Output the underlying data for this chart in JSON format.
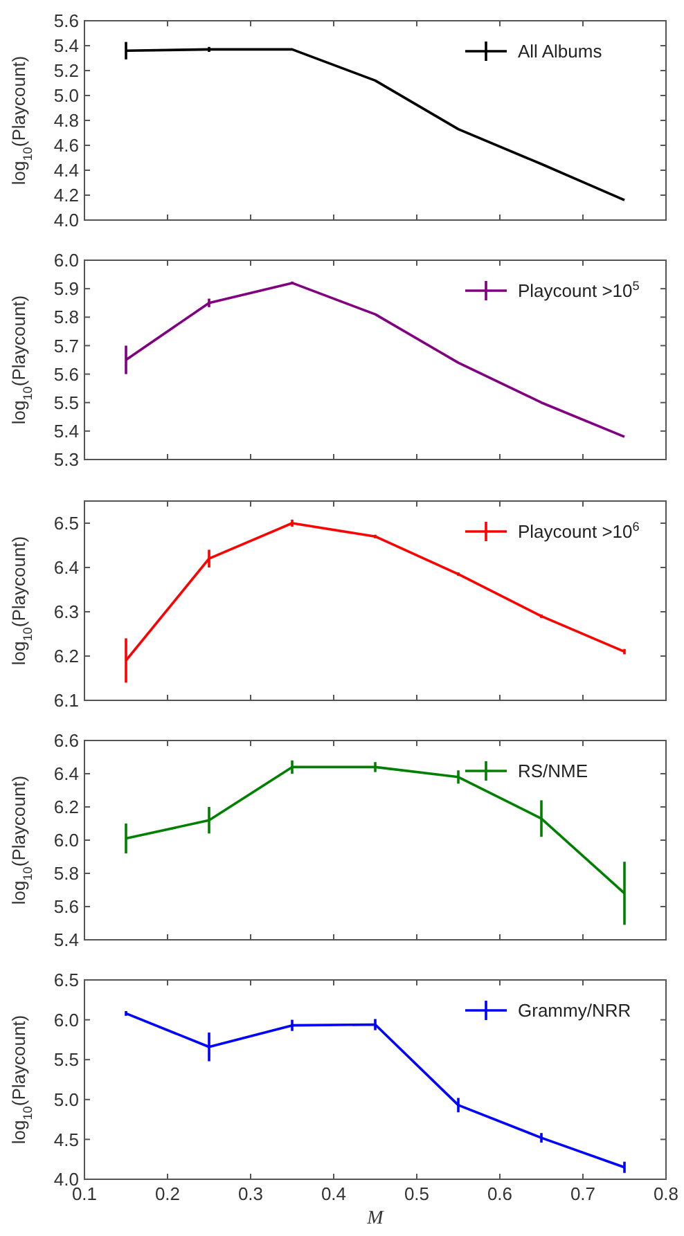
{
  "chart_data": [
    {
      "type": "line",
      "ylabel": "log$_{10}$(Playcount)",
      "x": [
        0.15,
        0.25,
        0.35,
        0.45,
        0.55,
        0.65,
        0.75
      ],
      "xlim": [
        0.1,
        0.8
      ],
      "xticks": [
        0.1,
        0.2,
        0.3,
        0.4,
        0.5,
        0.6,
        0.7,
        0.8
      ],
      "ylim": [
        4.0,
        5.6
      ],
      "yticks": [
        {
          "value": 4,
          "label": "4.0"
        },
        4.2,
        4.4,
        4.6,
        4.8,
        {
          "value": 5,
          "label": "5.0"
        },
        5.2,
        5.4,
        5.6
      ],
      "tick_labels": "y",
      "legend": "top right",
      "grid": false,
      "marker": "none",
      "line_style": "solid",
      "series": [
        {
          "name": "All Albums",
          "color": "#000000",
          "values": [
            5.36,
            5.37,
            5.37,
            5.12,
            4.73,
            4.45,
            4.16
          ],
          "errors": [
            0.07,
            0.02,
            null,
            null,
            null,
            null,
            null
          ]
        }
      ]
    },
    {
      "type": "line",
      "ylabel": "log$_{10}$(Playcount)",
      "x": [
        0.15,
        0.25,
        0.35,
        0.45,
        0.55,
        0.65,
        0.75
      ],
      "xlim": [
        0.1,
        0.8
      ],
      "xticks": [
        0.1,
        0.2,
        0.3,
        0.4,
        0.5,
        0.6,
        0.7,
        0.8
      ],
      "ylim": [
        5.3,
        6.0
      ],
      "yticks": [
        5.3,
        5.4,
        5.5,
        5.6,
        5.7,
        5.8,
        5.9,
        {
          "value": 6,
          "label": "6.0"
        }
      ],
      "tick_labels": "y",
      "legend": "top right",
      "grid": false,
      "marker": "none",
      "line_style": "solid",
      "series": [
        {
          "name": "Playcount >10$^{5}$",
          "color": "#800080",
          "values": [
            5.65,
            5.85,
            5.92,
            5.81,
            5.64,
            5.5,
            5.38
          ],
          "errors": [
            0.05,
            0.015,
            0.005,
            null,
            null,
            null,
            null
          ]
        }
      ]
    },
    {
      "type": "line",
      "ylabel": "log$_{10}$(Playcount)",
      "x": [
        0.15,
        0.25,
        0.35,
        0.45,
        0.55,
        0.65,
        0.75
      ],
      "xlim": [
        0.1,
        0.8
      ],
      "xticks": [
        0.1,
        0.2,
        0.3,
        0.4,
        0.5,
        0.6,
        0.7,
        0.8
      ],
      "ylim": [
        6.1,
        6.55
      ],
      "yticks": [
        6.1,
        6.2,
        6.3,
        6.4,
        6.5
      ],
      "tick_labels": "y",
      "legend": "top right",
      "grid": false,
      "marker": "none",
      "line_style": "solid",
      "series": [
        {
          "name": "Playcount >10$^{6}$",
          "color": "#ff0000",
          "values": [
            6.19,
            6.42,
            6.5,
            6.47,
            6.385,
            6.29,
            6.21
          ],
          "errors": [
            0.05,
            0.02,
            0.008,
            0.004,
            0.004,
            0.004,
            0.006
          ]
        }
      ]
    },
    {
      "type": "line",
      "ylabel": "log$_{10}$(Playcount)",
      "x": [
        0.15,
        0.25,
        0.35,
        0.45,
        0.55,
        0.65,
        0.75
      ],
      "xlim": [
        0.1,
        0.8
      ],
      "xticks": [
        0.1,
        0.2,
        0.3,
        0.4,
        0.5,
        0.6,
        0.7,
        0.8
      ],
      "ylim": [
        5.4,
        6.6
      ],
      "yticks": [
        5.4,
        5.6,
        5.8,
        {
          "value": 6,
          "label": "6.0"
        },
        6.2,
        6.4,
        6.6
      ],
      "tick_labels": "y",
      "legend": "top right",
      "grid": false,
      "marker": "none",
      "line_style": "solid",
      "series": [
        {
          "name": "RS/NME",
          "color": "#008000",
          "values": [
            6.01,
            6.12,
            6.44,
            6.44,
            6.38,
            6.13,
            5.68
          ],
          "errors": [
            0.09,
            0.08,
            0.04,
            0.03,
            0.04,
            0.11,
            0.19
          ]
        }
      ]
    },
    {
      "type": "line",
      "xlabel": "M",
      "ylabel": "log$_{10}$(Playcount)",
      "x": [
        0.15,
        0.25,
        0.35,
        0.45,
        0.55,
        0.65,
        0.75
      ],
      "xlim": [
        0.1,
        0.8
      ],
      "xticks": [
        0.1,
        0.2,
        0.3,
        0.4,
        0.5,
        0.6,
        0.7,
        0.8
      ],
      "ylim": [
        4.0,
        6.5
      ],
      "yticks": [
        {
          "value": 4,
          "label": "4.0"
        },
        4.5,
        {
          "value": 5,
          "label": "5.0"
        },
        5.5,
        {
          "value": 6,
          "label": "6.0"
        },
        6.5
      ],
      "legend": "top right",
      "grid": false,
      "marker": "none",
      "line_style": "solid",
      "series": [
        {
          "name": "Grammy/NRR",
          "color": "#0000ff",
          "values": [
            6.08,
            5.66,
            5.93,
            5.94,
            4.93,
            4.52,
            4.15
          ],
          "errors": [
            0.03,
            0.18,
            0.07,
            0.07,
            0.09,
            0.06,
            0.07
          ]
        }
      ]
    }
  ]
}
